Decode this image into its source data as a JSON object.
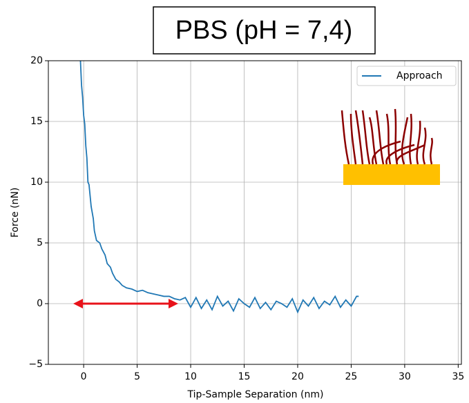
{
  "chart_data": {
    "type": "line",
    "title": "PBS (pH = 7,4)",
    "x_label": "Tip-Sample Separation (nm)",
    "y_label": "Force (nN)",
    "xlim": [
      -3.3,
      35.3
    ],
    "ylim": [
      -5,
      20
    ],
    "xticks": [
      0,
      5,
      10,
      15,
      20,
      25,
      30,
      35
    ],
    "yticks": [
      {
        "value": -5,
        "label": "−5"
      },
      0,
      5,
      10,
      15,
      20
    ],
    "grid": true,
    "legend": "upper right",
    "series": [
      {
        "name": "Approach",
        "color": "#1f77b4",
        "x": [
          -0.3,
          -0.2,
          -0.1,
          0,
          0.1,
          0.2,
          0.3,
          0.4,
          0.5,
          0.7,
          0.9,
          1,
          1.2,
          1.5,
          1.7,
          2,
          2.2,
          2.5,
          2.7,
          3,
          3.3,
          3.6,
          4,
          4.5,
          5,
          5.5,
          6,
          6.5,
          7,
          7.5,
          8,
          8.5,
          9,
          9.5,
          10,
          10.5,
          11,
          11.5,
          12,
          12.5,
          13,
          13.5,
          14,
          14.5,
          15,
          15.5,
          16,
          16.5,
          17,
          17.5,
          18,
          18.5,
          19,
          19.5,
          20,
          20.5,
          21,
          21.5,
          22,
          22.5,
          23,
          23.5,
          24,
          24.5,
          25,
          25.5,
          25.7
        ],
        "values": [
          20,
          18,
          17,
          15.5,
          14.8,
          13,
          12,
          10,
          9.8,
          8,
          7,
          6,
          5.2,
          5,
          4.5,
          4,
          3.3,
          3,
          2.5,
          2,
          1.8,
          1.5,
          1.3,
          1.2,
          1,
          1.1,
          0.9,
          0.8,
          0.7,
          0.6,
          0.6,
          0.4,
          0.3,
          0.5,
          -0.3,
          0.5,
          -0.4,
          0.3,
          -0.5,
          0.6,
          -0.2,
          0.2,
          -0.6,
          0.4,
          0,
          -0.3,
          0.5,
          -0.4,
          0.1,
          -0.5,
          0.2,
          0,
          -0.3,
          0.4,
          -0.7,
          0.3,
          -0.2,
          0.5,
          -0.4,
          0.2,
          -0.1,
          0.6,
          -0.3,
          0.3,
          -0.2,
          0.6,
          0.6
        ]
      }
    ]
  }
}
